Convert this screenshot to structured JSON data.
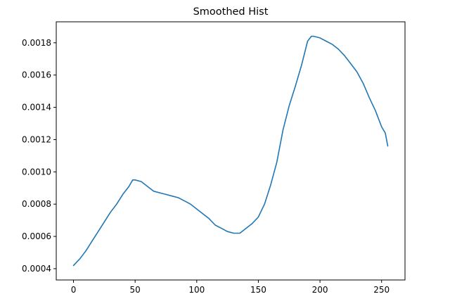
{
  "chart_data": {
    "type": "line",
    "title": "Smoothed Hist",
    "xlabel": "",
    "ylabel": "",
    "xlim": [
      -14,
      269
    ],
    "ylim": [
      0.00033,
      0.00193
    ],
    "xticks": [
      0,
      50,
      100,
      150,
      200,
      250
    ],
    "xtick_labels": [
      "0",
      "50",
      "100",
      "150",
      "200",
      "250"
    ],
    "yticks": [
      0.0004,
      0.0006,
      0.0008,
      0.001,
      0.0012,
      0.0014,
      0.0016,
      0.0018
    ],
    "ytick_labels": [
      "0.0004",
      "0.0006",
      "0.0008",
      "0.0010",
      "0.0012",
      "0.0014",
      "0.0016",
      "0.0018"
    ],
    "grid": false,
    "line_color": "#1f77b4",
    "series": [
      {
        "x": [
          0,
          5,
          10,
          15,
          20,
          25,
          30,
          35,
          40,
          45,
          48,
          50,
          55,
          60,
          65,
          70,
          75,
          80,
          85,
          90,
          95,
          100,
          105,
          110,
          115,
          120,
          125,
          130,
          135,
          140,
          145,
          150,
          155,
          160,
          165,
          170,
          175,
          180,
          185,
          190,
          193,
          195,
          200,
          205,
          210,
          215,
          220,
          225,
          230,
          235,
          240,
          245,
          250,
          253,
          255
        ],
        "y": [
          0.00042,
          0.00046,
          0.00051,
          0.00057,
          0.00063,
          0.00069,
          0.00075,
          0.0008,
          0.00086,
          0.00091,
          0.00095,
          0.00095,
          0.00094,
          0.00091,
          0.00088,
          0.00087,
          0.00086,
          0.00085,
          0.00084,
          0.00082,
          0.0008,
          0.00077,
          0.00074,
          0.00071,
          0.00067,
          0.00065,
          0.00063,
          0.00062,
          0.00062,
          0.00065,
          0.00068,
          0.00072,
          0.0008,
          0.00092,
          0.00106,
          0.00126,
          0.00141,
          0.00153,
          0.00166,
          0.00181,
          0.00184,
          0.00184,
          0.00183,
          0.00181,
          0.00179,
          0.00176,
          0.00172,
          0.00167,
          0.00162,
          0.00155,
          0.00146,
          0.00138,
          0.00128,
          0.00124,
          0.00116
        ]
      }
    ]
  }
}
